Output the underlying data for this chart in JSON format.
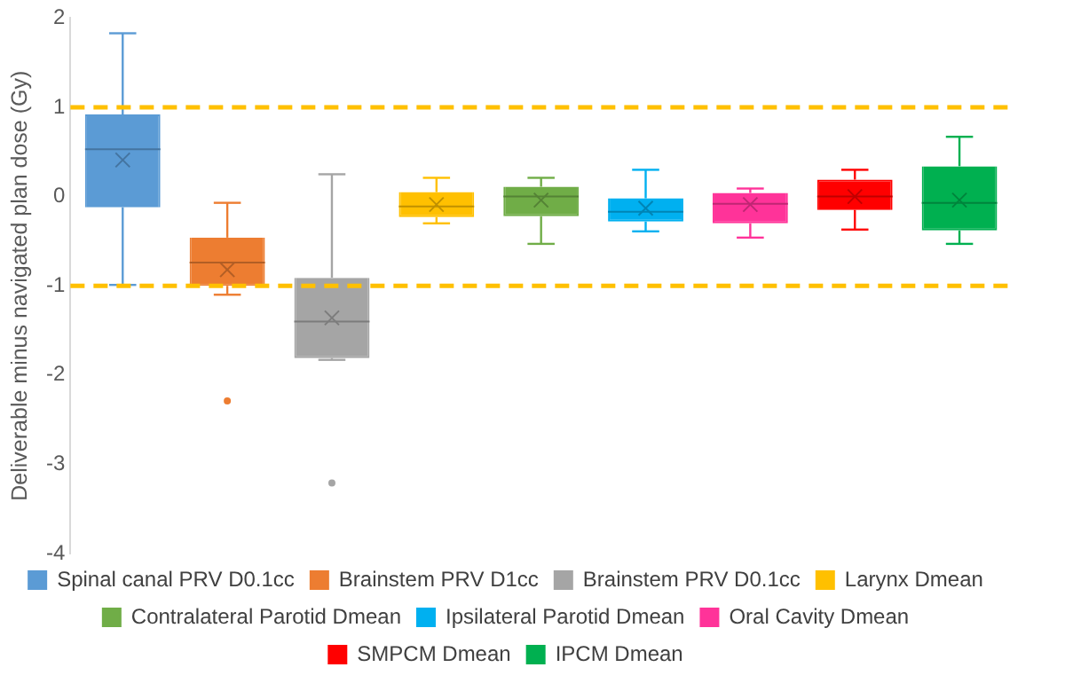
{
  "chart_data": {
    "type": "box",
    "ylabel": "Deliverable minus navigated plan dose (Gy)",
    "categories": [
      null,
      null,
      null,
      null,
      null,
      null,
      null,
      null,
      null
    ],
    "series": [
      {
        "name": "Spinal canal PRV D0.1cc",
        "color": "#5b9bd5",
        "boxes": [
          {
            "low": -0.99,
            "q1": -0.12,
            "median": 0.53,
            "q3": 0.92,
            "high": 1.83,
            "mean": 0.41
          },
          null,
          null,
          null,
          null,
          null,
          null,
          null,
          null
        ]
      },
      {
        "name": "Brainstem PRV D1cc",
        "color": "#ed7d31",
        "boxes": [
          null,
          {
            "low": -1.1,
            "q1": -1.0,
            "median": -0.74,
            "q3": -0.46,
            "high": -0.07,
            "mean": -0.82,
            "outliers": [
              -2.29
            ]
          },
          null,
          null,
          null,
          null,
          null,
          null,
          null
        ]
      },
      {
        "name": "Brainstem PRV D0.1cc",
        "color": "#a5a5a5",
        "boxes": [
          null,
          null,
          {
            "low": -1.83,
            "q1": -1.81,
            "median": -1.4,
            "q3": -0.91,
            "high": 0.25,
            "mean": -1.36,
            "outliers": [
              -3.21
            ]
          },
          null,
          null,
          null,
          null,
          null,
          null
        ]
      },
      {
        "name": "Larynx Dmean",
        "color": "#ffc000",
        "boxes": [
          null,
          null,
          null,
          {
            "low": -0.3,
            "q1": -0.23,
            "median": -0.11,
            "q3": 0.05,
            "high": 0.21,
            "mean": -0.09
          },
          null,
          null,
          null,
          null,
          null
        ]
      },
      {
        "name": "Contralateral Parotid Dmean",
        "color": "#70ad47",
        "boxes": [
          null,
          null,
          null,
          null,
          {
            "low": -0.53,
            "q1": -0.22,
            "median": 0.0,
            "q3": 0.11,
            "high": 0.21,
            "mean": -0.04
          },
          null,
          null,
          null,
          null
        ]
      },
      {
        "name": "Ipsilateral Parotid Dmean",
        "color": "#00b0f0",
        "boxes": [
          null,
          null,
          null,
          null,
          null,
          {
            "low": -0.39,
            "q1": -0.28,
            "median": -0.17,
            "q3": -0.02,
            "high": 0.3,
            "mean": -0.13
          },
          null,
          null,
          null
        ]
      },
      {
        "name": "Oral Cavity Dmean",
        "color": "#ff3399",
        "boxes": [
          null,
          null,
          null,
          null,
          null,
          null,
          {
            "low": -0.46,
            "q1": -0.3,
            "median": -0.08,
            "q3": 0.04,
            "high": 0.09,
            "mean": -0.09
          },
          null,
          null
        ]
      },
      {
        "name": "SMPCM Dmean",
        "color": "#ff0000",
        "boxes": [
          null,
          null,
          null,
          null,
          null,
          null,
          null,
          {
            "low": -0.37,
            "q1": -0.15,
            "median": 0.0,
            "q3": 0.19,
            "high": 0.3,
            "mean": 0.0
          },
          null
        ]
      },
      {
        "name": "IPCM Dmean",
        "color": "#00b050",
        "boxes": [
          null,
          null,
          null,
          null,
          null,
          null,
          null,
          null,
          {
            "low": -0.53,
            "q1": -0.38,
            "median": -0.07,
            "q3": 0.34,
            "high": 0.67,
            "mean": -0.04
          }
        ]
      }
    ],
    "ylim": [
      -4,
      2
    ],
    "yticks": [
      -4,
      -3,
      -2,
      -1,
      0,
      1,
      2
    ],
    "ref_lines": [
      {
        "axis": "y",
        "value": 1,
        "color": "#ffc000",
        "line_style": "dashed"
      },
      {
        "axis": "y",
        "value": -1,
        "color": "#ffc000",
        "line_style": "dashed"
      }
    ],
    "grid": false,
    "legend": "bottom",
    "tick_labels": "y"
  }
}
